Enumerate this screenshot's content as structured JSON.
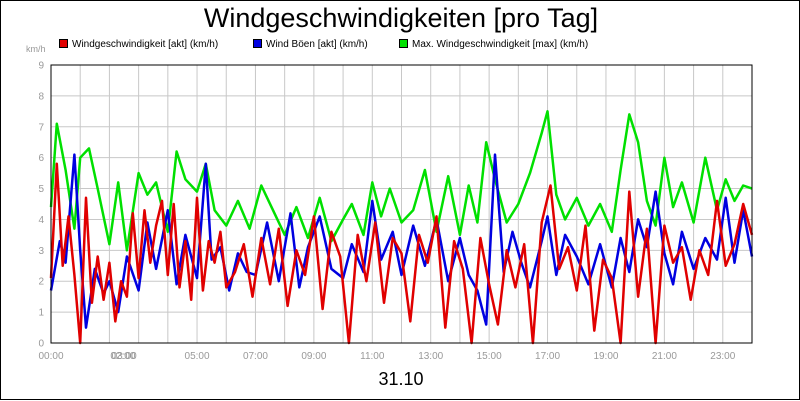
{
  "chart_data": {
    "type": "line",
    "title": "Windgeschwindigkeiten [pro Tag]",
    "ylabel": "km/h",
    "xlabel": "31.10",
    "ylim": [
      0,
      9
    ],
    "yticks": [
      "0",
      "1",
      "2",
      "3",
      "4",
      "5",
      "6",
      "7",
      "8",
      "9"
    ],
    "xticks": [
      "00:00",
      "02:00",
      "03:00",
      "05:00",
      "07:00",
      "09:00",
      "11:00",
      "13:00",
      "15:00",
      "17:00",
      "19:00",
      "21:00",
      "23:00"
    ],
    "xtick_hours": [
      0,
      2,
      3,
      5,
      7,
      9,
      11,
      13,
      15,
      17,
      19,
      21,
      23
    ],
    "xlim_hours": [
      0,
      24
    ],
    "grid": true,
    "legend_position": "top-left",
    "series": [
      {
        "name": "Max. Windgeschwindigkeit [max] (km/h)",
        "color": "#00e000",
        "x_hours": [
          0,
          0.2,
          0.5,
          0.8,
          1.0,
          1.3,
          1.6,
          2.0,
          2.3,
          2.6,
          3.0,
          3.3,
          3.6,
          4.0,
          4.3,
          4.6,
          5.0,
          5.3,
          5.6,
          6.0,
          6.4,
          6.8,
          7.2,
          7.6,
          8.0,
          8.4,
          8.8,
          9.2,
          9.6,
          10.0,
          10.3,
          10.7,
          11.0,
          11.3,
          11.6,
          12.0,
          12.4,
          12.8,
          13.2,
          13.6,
          14.0,
          14.3,
          14.6,
          14.9,
          15.2,
          15.6,
          16.0,
          16.4,
          16.8,
          17.0,
          17.3,
          17.6,
          18.0,
          18.4,
          18.8,
          19.2,
          19.5,
          19.8,
          20.1,
          20.4,
          20.7,
          21.0,
          21.3,
          21.6,
          22.0,
          22.4,
          22.8,
          23.1,
          23.4,
          23.7,
          24.0
        ],
        "values": [
          4.4,
          7.1,
          5.6,
          3.7,
          6.0,
          6.3,
          5.0,
          3.2,
          5.2,
          3.0,
          5.5,
          4.8,
          5.2,
          3.6,
          6.2,
          5.3,
          4.9,
          5.8,
          4.3,
          3.8,
          4.6,
          3.7,
          5.1,
          4.3,
          3.5,
          4.4,
          3.4,
          4.7,
          3.3,
          4.0,
          4.5,
          3.5,
          5.2,
          4.1,
          5.0,
          3.9,
          4.3,
          5.6,
          3.6,
          5.4,
          3.5,
          5.1,
          3.9,
          6.5,
          5.3,
          3.9,
          4.5,
          5.5,
          6.8,
          7.5,
          4.8,
          4.0,
          4.7,
          3.8,
          4.5,
          3.6,
          5.6,
          7.4,
          6.5,
          4.6,
          3.8,
          6.0,
          4.4,
          5.2,
          3.9,
          6.0,
          4.3,
          5.3,
          4.6,
          5.1,
          5.0
        ]
      },
      {
        "name": "Wind Böen [akt] (km/h)",
        "color": "#0000e0",
        "x_hours": [
          0,
          0.3,
          0.5,
          0.8,
          1.0,
          1.2,
          1.5,
          1.8,
          2.0,
          2.3,
          2.6,
          3.0,
          3.3,
          3.6,
          4.0,
          4.3,
          4.6,
          5.0,
          5.3,
          5.5,
          5.8,
          6.1,
          6.4,
          6.7,
          7.0,
          7.4,
          7.8,
          8.2,
          8.5,
          8.8,
          9.2,
          9.6,
          10.0,
          10.3,
          10.7,
          11.0,
          11.3,
          11.7,
          12.0,
          12.4,
          12.8,
          13.2,
          13.6,
          14.0,
          14.3,
          14.6,
          14.9,
          15.2,
          15.5,
          15.8,
          16.1,
          16.4,
          16.8,
          17.0,
          17.3,
          17.6,
          18.0,
          18.4,
          18.8,
          19.2,
          19.5,
          19.8,
          20.1,
          20.4,
          20.7,
          21.0,
          21.3,
          21.6,
          22.0,
          22.4,
          22.8,
          23.1,
          23.4,
          23.7,
          24.0
        ],
        "values": [
          1.7,
          3.3,
          2.6,
          6.1,
          3.0,
          0.5,
          2.4,
          1.6,
          2.0,
          1.0,
          2.8,
          1.7,
          3.9,
          2.4,
          4.3,
          1.9,
          3.5,
          2.1,
          5.8,
          2.7,
          3.1,
          1.7,
          2.9,
          2.3,
          2.2,
          3.9,
          2.0,
          4.2,
          1.8,
          3.1,
          4.1,
          2.4,
          2.1,
          3.2,
          2.3,
          4.6,
          2.7,
          3.6,
          2.2,
          3.8,
          2.5,
          4.0,
          2.0,
          3.4,
          2.2,
          1.7,
          0.6,
          6.1,
          2.3,
          3.6,
          2.6,
          1.8,
          3.3,
          4.1,
          2.2,
          3.5,
          2.8,
          1.9,
          3.2,
          1.8,
          3.4,
          2.3,
          4.0,
          3.1,
          4.9,
          2.9,
          1.9,
          3.6,
          2.4,
          3.4,
          2.7,
          4.7,
          2.6,
          4.3,
          2.8
        ]
      },
      {
        "name": "Windgeschwindigkeit [akt] (km/h)",
        "color": "#e00000",
        "x_hours": [
          0,
          0.2,
          0.4,
          0.6,
          0.8,
          1.0,
          1.2,
          1.4,
          1.6,
          1.8,
          2.0,
          2.2,
          2.4,
          2.6,
          2.8,
          3.0,
          3.2,
          3.4,
          3.6,
          3.8,
          4.0,
          4.2,
          4.4,
          4.6,
          4.8,
          5.0,
          5.2,
          5.4,
          5.6,
          5.8,
          6.0,
          6.3,
          6.6,
          6.9,
          7.2,
          7.5,
          7.8,
          8.1,
          8.4,
          8.7,
          9.0,
          9.3,
          9.6,
          9.9,
          10.2,
          10.5,
          10.8,
          11.1,
          11.4,
          11.7,
          12.0,
          12.3,
          12.6,
          12.9,
          13.2,
          13.5,
          13.8,
          14.1,
          14.4,
          14.7,
          15.0,
          15.3,
          15.6,
          15.9,
          16.2,
          16.5,
          16.8,
          17.1,
          17.4,
          17.7,
          18.0,
          18.3,
          18.6,
          18.9,
          19.2,
          19.5,
          19.8,
          20.1,
          20.4,
          20.7,
          21.0,
          21.3,
          21.6,
          21.9,
          22.2,
          22.5,
          22.8,
          23.1,
          23.4,
          23.7,
          24.0
        ],
        "values": [
          2.1,
          5.8,
          2.5,
          4.1,
          2.2,
          0.0,
          4.7,
          1.3,
          2.8,
          1.4,
          2.6,
          0.7,
          2.0,
          1.5,
          4.2,
          2.1,
          4.3,
          2.6,
          3.8,
          4.6,
          2.2,
          4.5,
          1.8,
          3.3,
          1.4,
          4.7,
          1.7,
          3.3,
          2.6,
          3.6,
          1.8,
          2.3,
          3.2,
          1.5,
          3.4,
          1.9,
          3.7,
          1.2,
          3.0,
          2.2,
          4.1,
          1.1,
          3.6,
          2.8,
          0.0,
          3.5,
          2.0,
          3.9,
          1.3,
          3.4,
          2.9,
          0.7,
          3.5,
          2.6,
          4.1,
          0.5,
          3.3,
          2.4,
          0.0,
          3.4,
          1.9,
          0.6,
          3.0,
          1.8,
          3.2,
          0.0,
          3.9,
          5.1,
          2.4,
          3.1,
          1.7,
          3.8,
          0.4,
          2.7,
          2.1,
          0.0,
          4.9,
          1.5,
          3.7,
          0.0,
          3.8,
          2.6,
          3.1,
          1.4,
          3.0,
          2.2,
          4.6,
          2.5,
          3.2,
          4.5,
          3.5
        ]
      }
    ]
  }
}
